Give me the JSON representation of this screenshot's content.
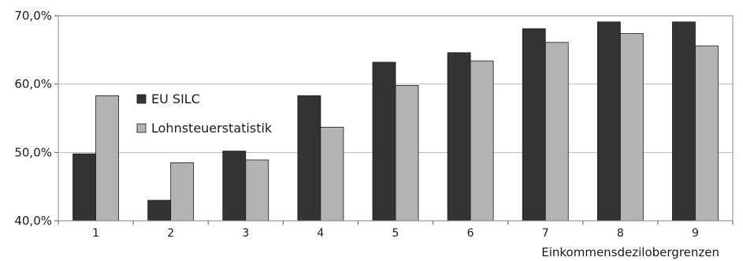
{
  "chart_data": {
    "type": "bar",
    "categories": [
      "1",
      "2",
      "3",
      "4",
      "5",
      "6",
      "7",
      "8",
      "9"
    ],
    "series": [
      {
        "name": "EU SILC",
        "color": "#333333",
        "values": [
          49.8,
          43.0,
          50.2,
          58.3,
          63.2,
          64.6,
          68.1,
          69.1,
          69.1
        ]
      },
      {
        "name": "Lohnsteuerstatistik",
        "color": "#b3b3b3",
        "values": [
          58.3,
          48.5,
          48.9,
          53.7,
          59.8,
          63.4,
          66.1,
          67.4,
          65.6
        ]
      }
    ],
    "xlabel": "Einkommensdezilobergrenzen",
    "ylabel": "",
    "ylim": [
      40,
      70
    ],
    "yticks": [
      40,
      50,
      60,
      70
    ],
    "ytick_labels": [
      "40,0%",
      "50,0%",
      "60,0%",
      "70,0%"
    ],
    "grid": true,
    "legend": "upper-left"
  }
}
